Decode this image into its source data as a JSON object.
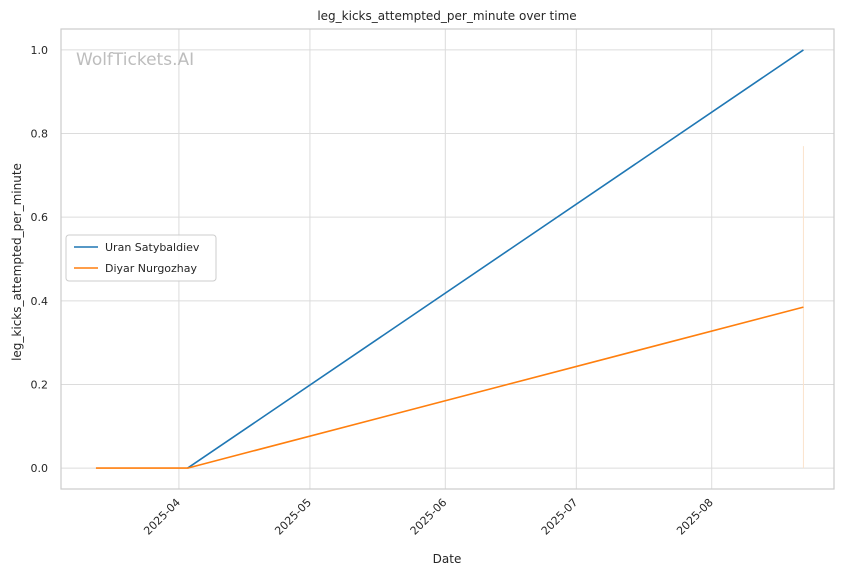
{
  "chart_data": {
    "type": "line",
    "title": "leg_kicks_attempted_per_minute over time",
    "xlabel": "Date",
    "ylabel": "leg_kicks_attempted_per_minute",
    "watermark": "WolfTickets.AI",
    "x_axis_type": "date",
    "xlim": [
      "2025-03-05",
      "2025-08-29"
    ],
    "ylim": [
      -0.05,
      1.05
    ],
    "x_ticks": [
      {
        "date": "2025-04-01",
        "label": "2025-04"
      },
      {
        "date": "2025-05-01",
        "label": "2025-05"
      },
      {
        "date": "2025-06-01",
        "label": "2025-06"
      },
      {
        "date": "2025-07-01",
        "label": "2025-07"
      },
      {
        "date": "2025-08-01",
        "label": "2025-08"
      }
    ],
    "y_ticks": [
      0.0,
      0.2,
      0.4,
      0.6,
      0.8,
      1.0
    ],
    "y_tick_labels": [
      "0.0",
      "0.2",
      "0.4",
      "0.6",
      "0.8",
      "1.0"
    ],
    "grid": true,
    "legend_position": "center-left",
    "series": [
      {
        "name": "Uran Satybaldiev",
        "color": "#1f77b4",
        "points": [
          {
            "x": "2025-04-03",
            "y": 0.0
          },
          {
            "x": "2025-08-22",
            "y": 1.0
          }
        ]
      },
      {
        "name": "Diyar Nurgozhay",
        "color": "#ff7f0e",
        "points": [
          {
            "x": "2025-03-13",
            "y": 0.0
          },
          {
            "x": "2025-04-03",
            "y": 0.0
          },
          {
            "x": "2025-08-22",
            "y": 0.385
          }
        ]
      }
    ],
    "annotations": [
      {
        "type": "vertical-line",
        "x": "2025-08-22",
        "y_range": [
          0.0,
          0.77
        ],
        "color": "#fbe3cc"
      }
    ]
  }
}
